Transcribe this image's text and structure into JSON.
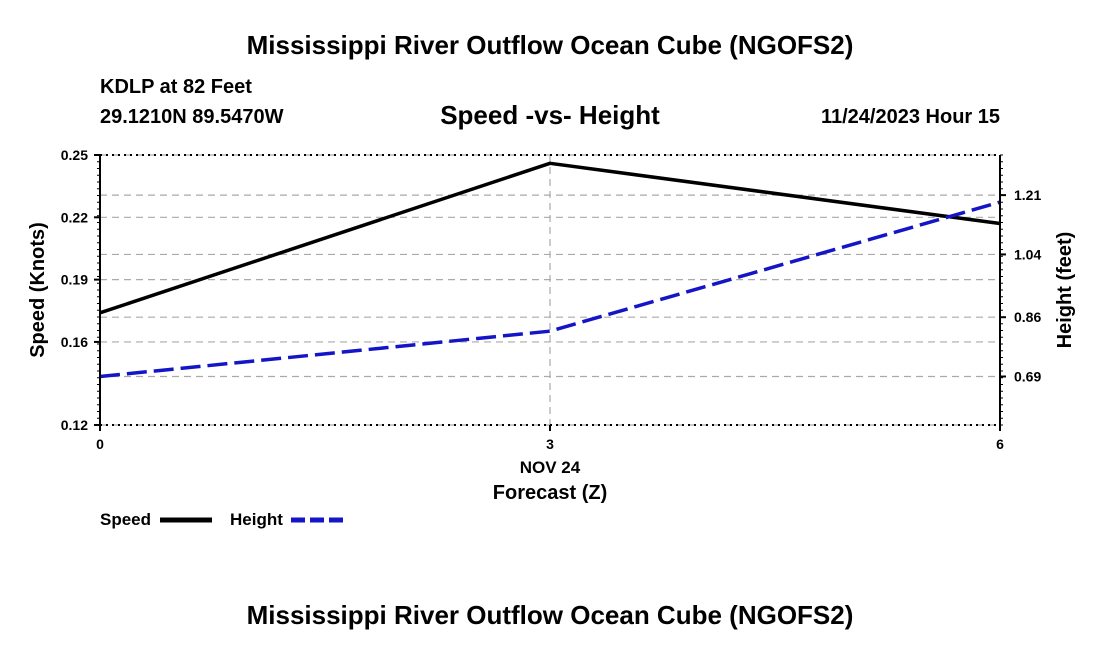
{
  "header": {
    "title": "Mississippi River Outflow Ocean Cube (NGOFS2)",
    "station": "KDLP at 82 Feet",
    "coords": "29.1210N  89.5470W",
    "subtitle": "Speed -vs- Height",
    "datetime": "11/24/2023 Hour 15"
  },
  "footer": {
    "title": "Mississippi River Outflow Ocean Cube (NGOFS2)"
  },
  "legend": {
    "speed_label": "Speed",
    "height_label": "Height"
  },
  "chart_data": {
    "type": "line",
    "title": "Speed -vs- Height",
    "xlabel": "Forecast (Z)",
    "date_label": "NOV 24",
    "ylabel": "Speed (Knots)",
    "y2label": "Height (feet)",
    "x": [
      0,
      3,
      6
    ],
    "x_ticks": [
      "0",
      "3",
      "6"
    ],
    "xlim": [
      0,
      6
    ],
    "ylim": [
      0.12,
      0.25
    ],
    "y_ticks": [
      "0.12",
      "0.16",
      "0.19",
      "0.22",
      "0.25"
    ],
    "y2lim": [
      0.551,
      1.325
    ],
    "y2_ticks": [
      "0.69",
      "0.86",
      "1.04",
      "1.21"
    ],
    "grid": true,
    "series": [
      {
        "name": "Speed",
        "axis": "left",
        "color": "#000000",
        "style": "solid",
        "values": [
          0.174,
          0.246,
          0.217
        ]
      },
      {
        "name": "Height",
        "axis": "right",
        "color": "#1515c8",
        "style": "dashed",
        "values": [
          0.69,
          0.82,
          1.19
        ]
      }
    ]
  }
}
